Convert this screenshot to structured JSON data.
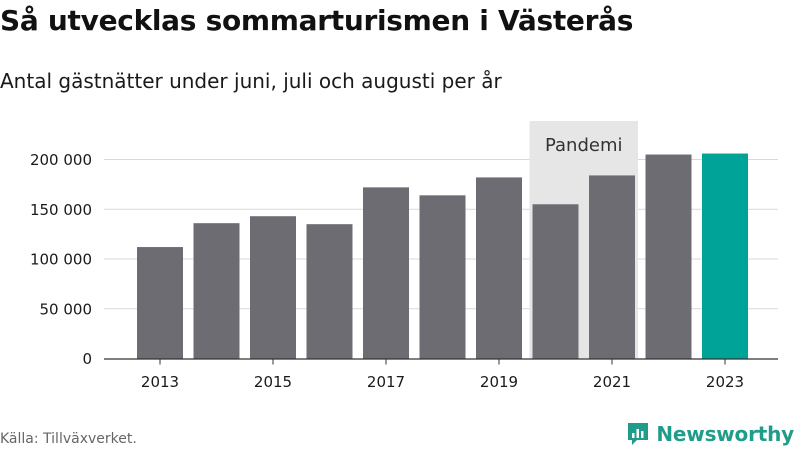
{
  "title": "Så utvecklas sommarturismen i Västerås",
  "subtitle": "Antal gästnätter under juni, juli och augusti per år",
  "source": "Källa: Tillväxverket.",
  "brand": {
    "name": "Newsworthy",
    "icon": "newsworthy-logo-icon"
  },
  "colors": {
    "bar": "#6d6c72",
    "highlight": "#00a398",
    "annotation_band": "#e6e6e6",
    "grid": "#d9d9d9",
    "axis": "#333333"
  },
  "chart_data": {
    "type": "bar",
    "categories": [
      "2013",
      "2014",
      "2015",
      "2016",
      "2017",
      "2018",
      "2019",
      "2020",
      "2021",
      "2022",
      "2023"
    ],
    "values": [
      112000,
      136000,
      143000,
      135000,
      172000,
      164000,
      182000,
      155000,
      184000,
      205000,
      206000
    ],
    "highlight_category": "2023",
    "x_tick_labels": [
      "2013",
      "2015",
      "2017",
      "2019",
      "2021",
      "2023"
    ],
    "y_ticks": [
      0,
      50000,
      100000,
      150000,
      200000
    ],
    "y_tick_labels": [
      "0",
      "50 000",
      "100 000",
      "150 000",
      "200 000"
    ],
    "ylim": [
      0,
      230000
    ],
    "xlabel": "",
    "ylabel": "",
    "grid": true,
    "annotations": [
      {
        "label": "Pandemi",
        "from": "2020",
        "to": "2021"
      }
    ]
  }
}
